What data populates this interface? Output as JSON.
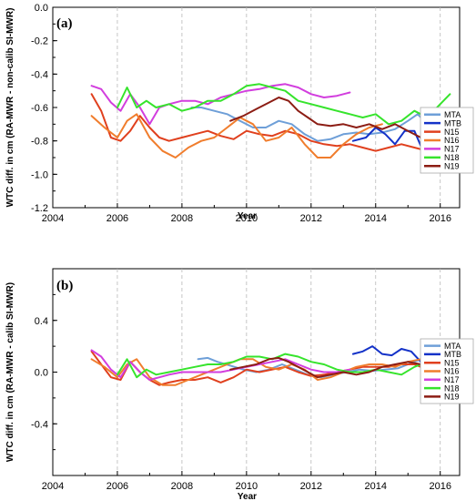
{
  "chart_data": [
    {
      "panel_label": "(a)",
      "type": "line",
      "xlabel": "Year",
      "ylabel": "WTC diff. in cm (RA-MWR - non-calib SI-MWR)",
      "xlim": [
        2004,
        2016.6
      ],
      "ylim": [
        -1.2,
        0.0
      ],
      "xticks": [
        2004,
        2006,
        2008,
        2010,
        2012,
        2014,
        2016
      ],
      "yticks": [
        -1.2,
        -1.0,
        -0.8,
        -0.6,
        -0.4,
        -0.2,
        0.0
      ],
      "ytick_labels": [
        "-1.2",
        "-1.0",
        "-0.8",
        "-0.6",
        "-0.4",
        "-0.2",
        "0.0"
      ],
      "grid": "vertical dashed",
      "legend_position": "right",
      "series": [
        {
          "name": "MTA",
          "color": "#6e9fd8",
          "x": [
            2008.3,
            2008.6,
            2009.0,
            2009.4,
            2009.8,
            2010.2,
            2010.6,
            2011.0,
            2011.4,
            2011.8,
            2012.2,
            2012.6,
            2013.0,
            2013.4,
            2013.8,
            2014.2,
            2014.6,
            2015.0,
            2015.3,
            2015.6,
            2016.0,
            2016.3
          ],
          "y": [
            -0.6,
            -0.6,
            -0.62,
            -0.64,
            -0.68,
            -0.72,
            -0.72,
            -0.68,
            -0.7,
            -0.76,
            -0.8,
            -0.79,
            -0.76,
            -0.75,
            -0.76,
            -0.75,
            -0.73,
            -0.68,
            -0.64,
            -0.7,
            -0.69,
            -0.63
          ]
        },
        {
          "name": "MTB",
          "color": "#1432c8",
          "x": [
            2013.3,
            2013.7,
            2014.0,
            2014.3,
            2014.6,
            2014.9,
            2015.2,
            2015.6,
            2016.0,
            2016.3
          ],
          "y": [
            -0.8,
            -0.78,
            -0.72,
            -0.76,
            -0.82,
            -0.74,
            -0.74,
            -0.92,
            -0.93,
            -0.95
          ]
        },
        {
          "name": "N15",
          "color": "#e0401e",
          "x": [
            2005.2,
            2005.5,
            2005.8,
            2006.1,
            2006.4,
            2006.7,
            2007.0,
            2007.3,
            2007.6,
            2008.0,
            2008.4,
            2008.8,
            2009.2,
            2009.6,
            2010.0,
            2010.4,
            2010.8,
            2011.2,
            2011.6,
            2012.0,
            2012.4,
            2012.8,
            2013.2,
            2013.6,
            2014.0,
            2014.4,
            2014.8,
            2015.2,
            2015.6,
            2016.0,
            2016.3
          ],
          "y": [
            -0.52,
            -0.62,
            -0.78,
            -0.8,
            -0.74,
            -0.65,
            -0.72,
            -0.78,
            -0.8,
            -0.78,
            -0.76,
            -0.74,
            -0.77,
            -0.79,
            -0.74,
            -0.76,
            -0.77,
            -0.74,
            -0.76,
            -0.8,
            -0.82,
            -0.83,
            -0.82,
            -0.84,
            -0.86,
            -0.84,
            -0.82,
            -0.84,
            -0.86,
            -0.78,
            -0.64
          ]
        },
        {
          "name": "N16",
          "color": "#f07d2d",
          "x": [
            2005.2,
            2005.6,
            2006.0,
            2006.3,
            2006.6,
            2007.0,
            2007.4,
            2007.8,
            2008.2,
            2008.6,
            2009.0,
            2009.4,
            2009.8,
            2010.2,
            2010.6,
            2011.0,
            2011.4,
            2011.8,
            2012.2,
            2012.6,
            2013.0,
            2013.4,
            2013.8,
            2014.2
          ],
          "y": [
            -0.65,
            -0.72,
            -0.78,
            -0.68,
            -0.64,
            -0.78,
            -0.86,
            -0.9,
            -0.84,
            -0.8,
            -0.78,
            -0.72,
            -0.66,
            -0.7,
            -0.8,
            -0.78,
            -0.72,
            -0.82,
            -0.9,
            -0.9,
            -0.82,
            -0.76,
            -0.72,
            -0.7
          ]
        },
        {
          "name": "N17",
          "color": "#d23ede",
          "x": [
            2005.2,
            2005.5,
            2005.8,
            2006.1,
            2006.4,
            2006.7,
            2007.0,
            2007.3,
            2007.6,
            2008.0,
            2008.4,
            2008.8,
            2009.2,
            2009.6,
            2010.0,
            2010.4,
            2010.8,
            2011.2,
            2011.6,
            2012.0,
            2012.4,
            2012.8,
            2013.2
          ],
          "y": [
            -0.47,
            -0.49,
            -0.57,
            -0.62,
            -0.52,
            -0.6,
            -0.7,
            -0.6,
            -0.58,
            -0.56,
            -0.56,
            -0.58,
            -0.54,
            -0.52,
            -0.5,
            -0.49,
            -0.47,
            -0.46,
            -0.48,
            -0.52,
            -0.54,
            -0.53,
            -0.51
          ]
        },
        {
          "name": "N18",
          "color": "#36e42c",
          "x": [
            2006.0,
            2006.3,
            2006.6,
            2006.9,
            2007.2,
            2007.6,
            2008.0,
            2008.4,
            2008.8,
            2009.2,
            2009.6,
            2010.0,
            2010.4,
            2010.8,
            2011.2,
            2011.6,
            2012.0,
            2012.4,
            2012.8,
            2013.2,
            2013.6,
            2014.0,
            2014.4,
            2014.8,
            2015.2,
            2015.6,
            2016.0,
            2016.3
          ],
          "y": [
            -0.6,
            -0.48,
            -0.6,
            -0.56,
            -0.6,
            -0.58,
            -0.62,
            -0.6,
            -0.56,
            -0.56,
            -0.52,
            -0.47,
            -0.46,
            -0.48,
            -0.5,
            -0.56,
            -0.58,
            -0.6,
            -0.62,
            -0.64,
            -0.66,
            -0.64,
            -0.7,
            -0.68,
            -0.62,
            -0.66,
            -0.58,
            -0.52
          ]
        },
        {
          "name": "N19",
          "color": "#8c1d14",
          "x": [
            2009.5,
            2009.9,
            2010.3,
            2010.7,
            2011.0,
            2011.3,
            2011.6,
            2011.9,
            2012.2,
            2012.6,
            2013.0,
            2013.4,
            2013.8,
            2014.2,
            2014.6,
            2015.0,
            2015.4,
            2015.8,
            2016.0,
            2016.3
          ],
          "y": [
            -0.68,
            -0.65,
            -0.61,
            -0.57,
            -0.54,
            -0.56,
            -0.62,
            -0.66,
            -0.7,
            -0.71,
            -0.7,
            -0.72,
            -0.7,
            -0.73,
            -0.7,
            -0.74,
            -0.78,
            -0.7,
            -0.74,
            -0.78
          ]
        }
      ]
    },
    {
      "panel_label": "(b)",
      "type": "line",
      "xlabel": "Year",
      "ylabel": "WTC diff. in cm (RA-MWR - calib SI-MWR)",
      "xlim": [
        2004,
        2016.6
      ],
      "ylim": [
        -0.8,
        0.8
      ],
      "xticks": [
        2004,
        2006,
        2008,
        2010,
        2012,
        2014,
        2016
      ],
      "yticks": [
        -0.4,
        0.0,
        0.4
      ],
      "ytick_labels": [
        "-0.4",
        "0.0",
        "0.4"
      ],
      "grid": "vertical dashed",
      "legend_position": "right",
      "series": [
        {
          "name": "MTA",
          "color": "#6e9fd8",
          "x": [
            2008.5,
            2008.8,
            2009.1,
            2009.5,
            2009.9,
            2010.3,
            2010.7,
            2011.1,
            2011.5,
            2011.9,
            2012.3,
            2012.7,
            2013.1,
            2013.5,
            2013.9,
            2014.3,
            2014.7,
            2015.1,
            2015.4,
            2015.7,
            2016.0,
            2016.3
          ],
          "y": [
            0.1,
            0.11,
            0.08,
            0.05,
            0.02,
            0.0,
            0.02,
            0.06,
            0.02,
            -0.02,
            -0.04,
            -0.02,
            0.0,
            0.02,
            0.01,
            0.02,
            0.03,
            0.07,
            0.1,
            0.05,
            0.06,
            0.14
          ]
        },
        {
          "name": "MTB",
          "color": "#1432c8",
          "x": [
            2013.3,
            2013.6,
            2013.9,
            2014.2,
            2014.5,
            2014.8,
            2015.1,
            2015.4,
            2015.7,
            2016.0,
            2016.3
          ],
          "y": [
            0.14,
            0.16,
            0.2,
            0.14,
            0.13,
            0.18,
            0.16,
            0.08,
            0.06,
            0.04,
            -0.01
          ]
        },
        {
          "name": "N15",
          "color": "#e0401e",
          "x": [
            2005.2,
            2005.5,
            2005.8,
            2006.1,
            2006.4,
            2006.7,
            2007.0,
            2007.3,
            2007.6,
            2008.0,
            2008.4,
            2008.8,
            2009.2,
            2009.6,
            2010.0,
            2010.4,
            2010.8,
            2011.2,
            2011.6,
            2012.0,
            2012.4,
            2012.8,
            2013.2,
            2013.6,
            2014.0,
            2014.4,
            2014.8,
            2015.2,
            2015.6,
            2016.0,
            2016.3
          ],
          "y": [
            0.16,
            0.06,
            -0.04,
            -0.06,
            0.08,
            0.0,
            -0.06,
            -0.1,
            -0.08,
            -0.06,
            -0.06,
            -0.04,
            -0.08,
            -0.04,
            0.02,
            0.0,
            0.02,
            0.04,
            0.0,
            -0.03,
            -0.02,
            0.0,
            0.02,
            0.04,
            0.04,
            0.04,
            0.06,
            0.06,
            0.02,
            0.04,
            0.19
          ]
        },
        {
          "name": "N16",
          "color": "#f07d2d",
          "x": [
            2005.2,
            2005.6,
            2006.0,
            2006.3,
            2006.6,
            2007.0,
            2007.4,
            2007.8,
            2008.2,
            2008.6,
            2009.0,
            2009.4,
            2009.8,
            2010.2,
            2010.6,
            2011.0,
            2011.4,
            2011.8,
            2012.2,
            2012.6,
            2013.0,
            2013.4,
            2013.8,
            2014.2,
            2014.6,
            2015.0,
            2015.4,
            2015.8,
            2016.0,
            2016.3
          ],
          "y": [
            0.1,
            0.04,
            -0.04,
            0.06,
            0.1,
            -0.04,
            -0.1,
            -0.1,
            -0.06,
            -0.02,
            0.02,
            0.06,
            0.1,
            0.1,
            0.04,
            0.02,
            0.06,
            0.02,
            -0.06,
            -0.04,
            0.0,
            0.04,
            0.06,
            0.06,
            0.04,
            0.08,
            0.1,
            0.12,
            0.14,
            0.18
          ]
        },
        {
          "name": "N17",
          "color": "#d23ede",
          "x": [
            2005.2,
            2005.5,
            2005.8,
            2006.1,
            2006.4,
            2006.7,
            2007.0,
            2007.3,
            2007.6,
            2008.0,
            2008.4,
            2008.8,
            2009.2,
            2009.6,
            2010.0,
            2010.4,
            2010.8,
            2011.2,
            2011.6,
            2012.0,
            2012.4,
            2012.8,
            2013.2
          ],
          "y": [
            0.17,
            0.12,
            0.02,
            -0.04,
            0.08,
            0.0,
            -0.06,
            -0.04,
            -0.02,
            0.0,
            0.0,
            0.0,
            0.0,
            0.02,
            0.04,
            0.06,
            0.08,
            0.1,
            0.06,
            0.02,
            0.0,
            0.0,
            0.02
          ]
        },
        {
          "name": "N18",
          "color": "#36e42c",
          "x": [
            2006.0,
            2006.3,
            2006.6,
            2006.9,
            2007.2,
            2007.6,
            2008.0,
            2008.4,
            2008.8,
            2009.2,
            2009.6,
            2010.0,
            2010.4,
            2010.8,
            2011.2,
            2011.6,
            2012.0,
            2012.4,
            2012.8,
            2013.2,
            2013.6,
            2014.0,
            2014.4,
            2014.8,
            2015.2,
            2015.6,
            2016.0,
            2016.3
          ],
          "y": [
            -0.02,
            0.1,
            -0.04,
            0.02,
            -0.02,
            0.0,
            0.02,
            0.04,
            0.06,
            0.06,
            0.08,
            0.12,
            0.12,
            0.1,
            0.14,
            0.12,
            0.08,
            0.06,
            0.02,
            0.0,
            0.0,
            0.02,
            0.0,
            -0.02,
            0.04,
            0.08,
            0.12,
            0.14
          ]
        },
        {
          "name": "N19",
          "color": "#8c1d14",
          "x": [
            2009.5,
            2009.9,
            2010.3,
            2010.7,
            2011.0,
            2011.3,
            2011.6,
            2011.9,
            2012.2,
            2012.6,
            2013.0,
            2013.4,
            2013.8,
            2014.2,
            2014.6,
            2015.0,
            2015.4,
            2015.8,
            2016.0,
            2016.3
          ],
          "y": [
            0.02,
            0.04,
            0.06,
            0.1,
            0.11,
            0.08,
            0.04,
            0.0,
            -0.04,
            -0.02,
            0.0,
            -0.02,
            0.0,
            0.04,
            0.06,
            0.08,
            0.06,
            0.04,
            0.08,
            0.0
          ]
        }
      ]
    }
  ]
}
